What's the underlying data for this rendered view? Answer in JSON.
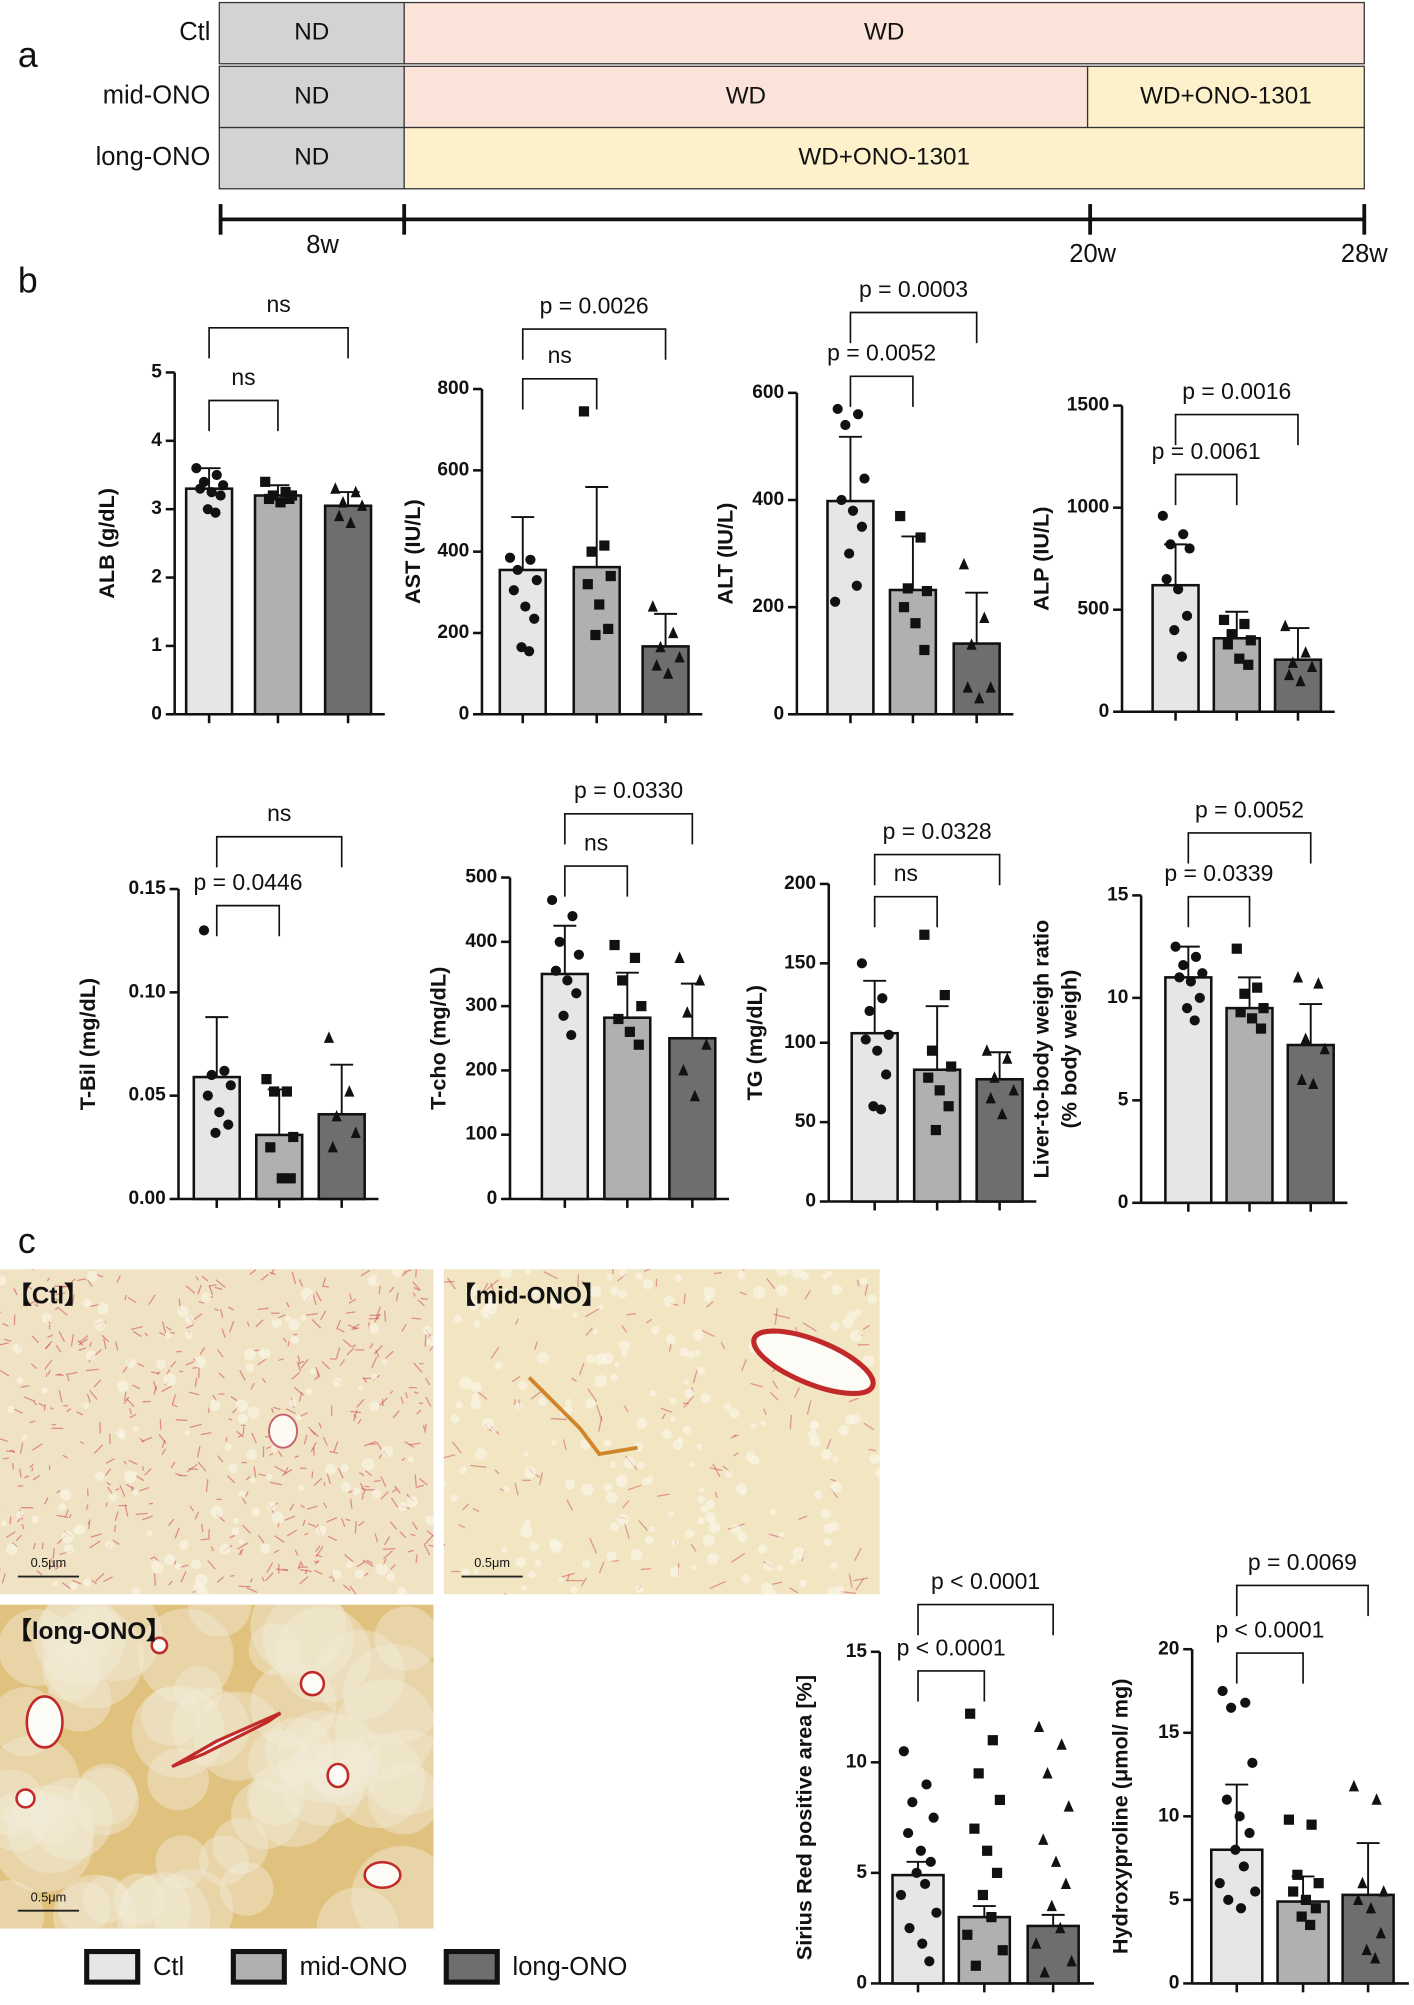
{
  "panels": [
    "a",
    "b",
    "c"
  ],
  "timeline": {
    "rows": [
      {
        "label": "Ctl",
        "segments": [
          {
            "text": "ND",
            "color": "#d3d3d3"
          },
          {
            "text": "WD",
            "color": "#fbe3d9"
          }
        ]
      },
      {
        "label": "mid-ONO",
        "segments": [
          {
            "text": "ND",
            "color": "#d3d3d3"
          },
          {
            "text": "WD",
            "color": "#fbe3d9"
          },
          {
            "text": "WD+ONO-1301",
            "color": "#fdf1cc"
          }
        ]
      },
      {
        "label": "long-ONO",
        "segments": [
          {
            "text": "ND",
            "color": "#d3d3d3"
          },
          {
            "text": "WD+ONO-1301",
            "color": "#fdf1cc"
          }
        ]
      }
    ],
    "ticks": [
      "8w",
      "20w",
      "28w"
    ]
  },
  "legend": {
    "items": [
      {
        "name": "Ctl",
        "color": "#e6e6e6",
        "marker": "circle"
      },
      {
        "name": "mid-ONO",
        "color": "#b0b0b0",
        "marker": "square"
      },
      {
        "name": "long-ONO",
        "color": "#6e6e6e",
        "marker": "triangle"
      }
    ]
  },
  "images": [
    {
      "caption": "【Ctl】",
      "scale": "0.5μm",
      "style": "ctl"
    },
    {
      "caption": "【mid-ONO】",
      "scale": "0.5μm",
      "style": "mid"
    },
    {
      "caption": "【long-ONO】",
      "scale": "0.5μm",
      "style": "long"
    }
  ],
  "chart_data": [
    {
      "type": "bar",
      "ylabel": "ALB (g/dL)",
      "categories": [
        null,
        null,
        null
      ],
      "ylim": [
        0,
        5
      ],
      "yticks": [
        0,
        1,
        2,
        3,
        4,
        5
      ],
      "values": [
        3.3,
        3.2,
        3.05
      ],
      "errors": [
        0.3,
        0.15,
        0.2
      ],
      "points": [
        [
          3.6,
          3.5,
          3.4,
          3.35,
          3.3,
          3.25,
          3.2,
          3.0,
          2.95
        ],
        [
          3.4,
          3.25,
          3.2,
          3.2,
          3.15,
          3.1,
          3.15
        ],
        [
          3.3,
          3.25,
          3.1,
          3.05,
          2.9,
          2.8
        ]
      ],
      "comparisons": [
        {
          "from": 0,
          "to": 1,
          "label": "ns"
        },
        {
          "from": 0,
          "to": 2,
          "label": "ns"
        }
      ]
    },
    {
      "type": "bar",
      "ylabel": "AST (IU/L)",
      "categories": [
        null,
        null,
        null
      ],
      "ylim": [
        0,
        800
      ],
      "yticks": [
        0,
        200,
        400,
        600,
        800
      ],
      "values": [
        355,
        362,
        167
      ],
      "errors": [
        130,
        197,
        80
      ],
      "points": [
        [
          385,
          380,
          355,
          330,
          305,
          265,
          235,
          165,
          155
        ],
        [
          745,
          415,
          400,
          340,
          320,
          270,
          210,
          195
        ],
        [
          265,
          200,
          165,
          140,
          120,
          100
        ]
      ],
      "comparisons": [
        {
          "from": 0,
          "to": 1,
          "label": "ns"
        },
        {
          "from": 0,
          "to": 2,
          "label": "p = 0.0026"
        }
      ]
    },
    {
      "type": "bar",
      "ylabel": "ALT (IU/L)",
      "categories": [
        null,
        null,
        null
      ],
      "ylim": [
        0,
        600
      ],
      "yticks": [
        0,
        200,
        400,
        600
      ],
      "values": [
        398,
        232,
        132
      ],
      "errors": [
        120,
        100,
        95
      ],
      "points": [
        [
          570,
          560,
          540,
          440,
          400,
          380,
          350,
          300,
          240,
          210
        ],
        [
          370,
          330,
          235,
          230,
          200,
          170,
          120
        ],
        [
          280,
          180,
          130,
          50,
          50,
          30
        ]
      ],
      "comparisons": [
        {
          "from": 0,
          "to": 1,
          "label": "p = 0.0052"
        },
        {
          "from": 0,
          "to": 2,
          "label": "p = 0.0003"
        }
      ]
    },
    {
      "type": "bar",
      "ylabel": "ALP (IU/L)",
      "categories": [
        null,
        null,
        null
      ],
      "ylim": [
        0,
        1500
      ],
      "yticks": [
        0,
        500,
        1000,
        1500
      ],
      "values": [
        620,
        360,
        255
      ],
      "errors": [
        200,
        130,
        155
      ],
      "points": [
        [
          960,
          870,
          820,
          800,
          650,
          600,
          470,
          400,
          270
        ],
        [
          450,
          430,
          380,
          350,
          330,
          260,
          230
        ],
        [
          420,
          290,
          240,
          220,
          180,
          150
        ]
      ],
      "comparisons": [
        {
          "from": 0,
          "to": 1,
          "label": "p = 0.0061"
        },
        {
          "from": 0,
          "to": 2,
          "label": "p = 0.0016"
        }
      ]
    },
    {
      "type": "bar",
      "ylabel": "T-Bil (mg/dL)",
      "categories": [
        null,
        null,
        null
      ],
      "ylim": [
        0,
        0.15
      ],
      "yticks": [
        {
          "value": 0,
          "label": "0.00"
        },
        {
          "value": 0.05,
          "label": "0.05"
        },
        {
          "value": 0.1,
          "label": "0.10"
        },
        {
          "value": 0.15,
          "label": "0.15"
        }
      ],
      "values": [
        0.059,
        0.031,
        0.041
      ],
      "errors": [
        0.029,
        0.022,
        0.024
      ],
      "points": [
        [
          0.13,
          0.062,
          0.06,
          0.055,
          0.05,
          0.042,
          0.036,
          0.032
        ],
        [
          0.058,
          0.052,
          0.052,
          0.03,
          0.025,
          0.01,
          0.01
        ],
        [
          0.078,
          0.052,
          0.04,
          0.032,
          0.025
        ]
      ],
      "comparisons": [
        {
          "from": 0,
          "to": 1,
          "label": "p = 0.0446"
        },
        {
          "from": 0,
          "to": 2,
          "label": "ns"
        }
      ]
    },
    {
      "type": "bar",
      "ylabel": "T-cho (mg/dL)",
      "categories": [
        null,
        null,
        null
      ],
      "ylim": [
        0,
        500
      ],
      "yticks": [
        0,
        100,
        200,
        300,
        400,
        500
      ],
      "values": [
        350,
        282,
        250
      ],
      "errors": [
        75,
        70,
        85
      ],
      "points": [
        [
          465,
          440,
          400,
          380,
          355,
          340,
          320,
          285,
          255
        ],
        [
          395,
          375,
          340,
          300,
          280,
          260,
          240
        ],
        [
          375,
          340,
          290,
          240,
          200,
          160
        ]
      ],
      "comparisons": [
        {
          "from": 0,
          "to": 1,
          "label": "ns"
        },
        {
          "from": 0,
          "to": 2,
          "label": "p = 0.0330"
        }
      ]
    },
    {
      "type": "bar",
      "ylabel": "TG (mg/dL)",
      "categories": [
        null,
        null,
        null
      ],
      "ylim": [
        0,
        200
      ],
      "yticks": [
        0,
        50,
        100,
        150,
        200
      ],
      "values": [
        106,
        83,
        77
      ],
      "errors": [
        33,
        40,
        17
      ],
      "points": [
        [
          150,
          128,
          120,
          105,
          102,
          95,
          80,
          60,
          58
        ],
        [
          168,
          130,
          95,
          85,
          78,
          70,
          60,
          45
        ],
        [
          95,
          90,
          78,
          70,
          65,
          55
        ]
      ],
      "comparisons": [
        {
          "from": 0,
          "to": 1,
          "label": "ns"
        },
        {
          "from": 0,
          "to": 2,
          "label": "p = 0.0328"
        }
      ]
    },
    {
      "type": "bar",
      "ylabel": [
        "Liver-to-body weigh ratio",
        "(% body weigh)"
      ],
      "categories": [
        null,
        null,
        null
      ],
      "ylim": [
        0,
        15
      ],
      "yticks": [
        0,
        5,
        10,
        15
      ],
      "values": [
        11.0,
        9.5,
        7.7
      ],
      "errors": [
        1.5,
        1.5,
        2.0
      ],
      "points": [
        [
          12.5,
          12.0,
          11.6,
          11.2,
          11.0,
          10.8,
          10.0,
          9.5,
          8.9
        ],
        [
          12.4,
          10.5,
          10.2,
          9.5,
          9.3,
          9.0,
          8.5
        ],
        [
          11.0,
          10.7,
          8.0,
          7.5,
          6.0,
          5.8
        ]
      ],
      "comparisons": [
        {
          "from": 0,
          "to": 1,
          "label": "p = 0.0339"
        },
        {
          "from": 0,
          "to": 2,
          "label": "p = 0.0052"
        }
      ]
    },
    {
      "type": "bar",
      "ylabel": "Sirius Red positive area [%]",
      "categories": [
        null,
        null,
        null
      ],
      "ylim": [
        0,
        15
      ],
      "yticks": [
        0,
        5,
        10,
        15
      ],
      "values": [
        4.9,
        3.0,
        2.6
      ],
      "errors": [
        0.6,
        0.5,
        0.5
      ],
      "points": [
        [
          10.5,
          9.0,
          8.2,
          7.5,
          6.8,
          6.0,
          5.5,
          5.0,
          4.5,
          4.0,
          3.2,
          2.5,
          1.8,
          1.0
        ],
        [
          12.2,
          11.0,
          9.5,
          8.3,
          7.0,
          6.0,
          5.0,
          4.0,
          3.0,
          2.2,
          1.5,
          0.8
        ],
        [
          11.6,
          10.8,
          9.5,
          8.0,
          6.5,
          5.5,
          4.5,
          3.5,
          2.5,
          1.8,
          1.0,
          0.5
        ]
      ],
      "comparisons": [
        {
          "from": 0,
          "to": 1,
          "label": "p < 0.0001"
        },
        {
          "from": 0,
          "to": 2,
          "label": "p < 0.0001"
        }
      ]
    },
    {
      "type": "bar",
      "ylabel": "Hydroxyproline (μmol/ mg)",
      "categories": [
        null,
        null,
        null
      ],
      "ylim": [
        0,
        20
      ],
      "yticks": [
        0,
        5,
        10,
        15,
        20
      ],
      "values": [
        8.0,
        4.9,
        5.3
      ],
      "errors": [
        3.9,
        1.5,
        3.1
      ],
      "points": [
        [
          17.5,
          16.8,
          16.5,
          13.2,
          11.0,
          10.0,
          9.0,
          8.0,
          7.0,
          6.0,
          5.5,
          5.0,
          4.5
        ],
        [
          9.8,
          9.5,
          6.5,
          6.0,
          5.5,
          5.0,
          4.5,
          4.0,
          3.5
        ],
        [
          11.8,
          11.0,
          6.0,
          5.5,
          5.0,
          4.5,
          3.0,
          2.0,
          1.5
        ]
      ],
      "comparisons": [
        {
          "from": 0,
          "to": 1,
          "label": "p < 0.0001"
        },
        {
          "from": 0,
          "to": 2,
          "label": "p = 0.0069"
        }
      ]
    }
  ]
}
